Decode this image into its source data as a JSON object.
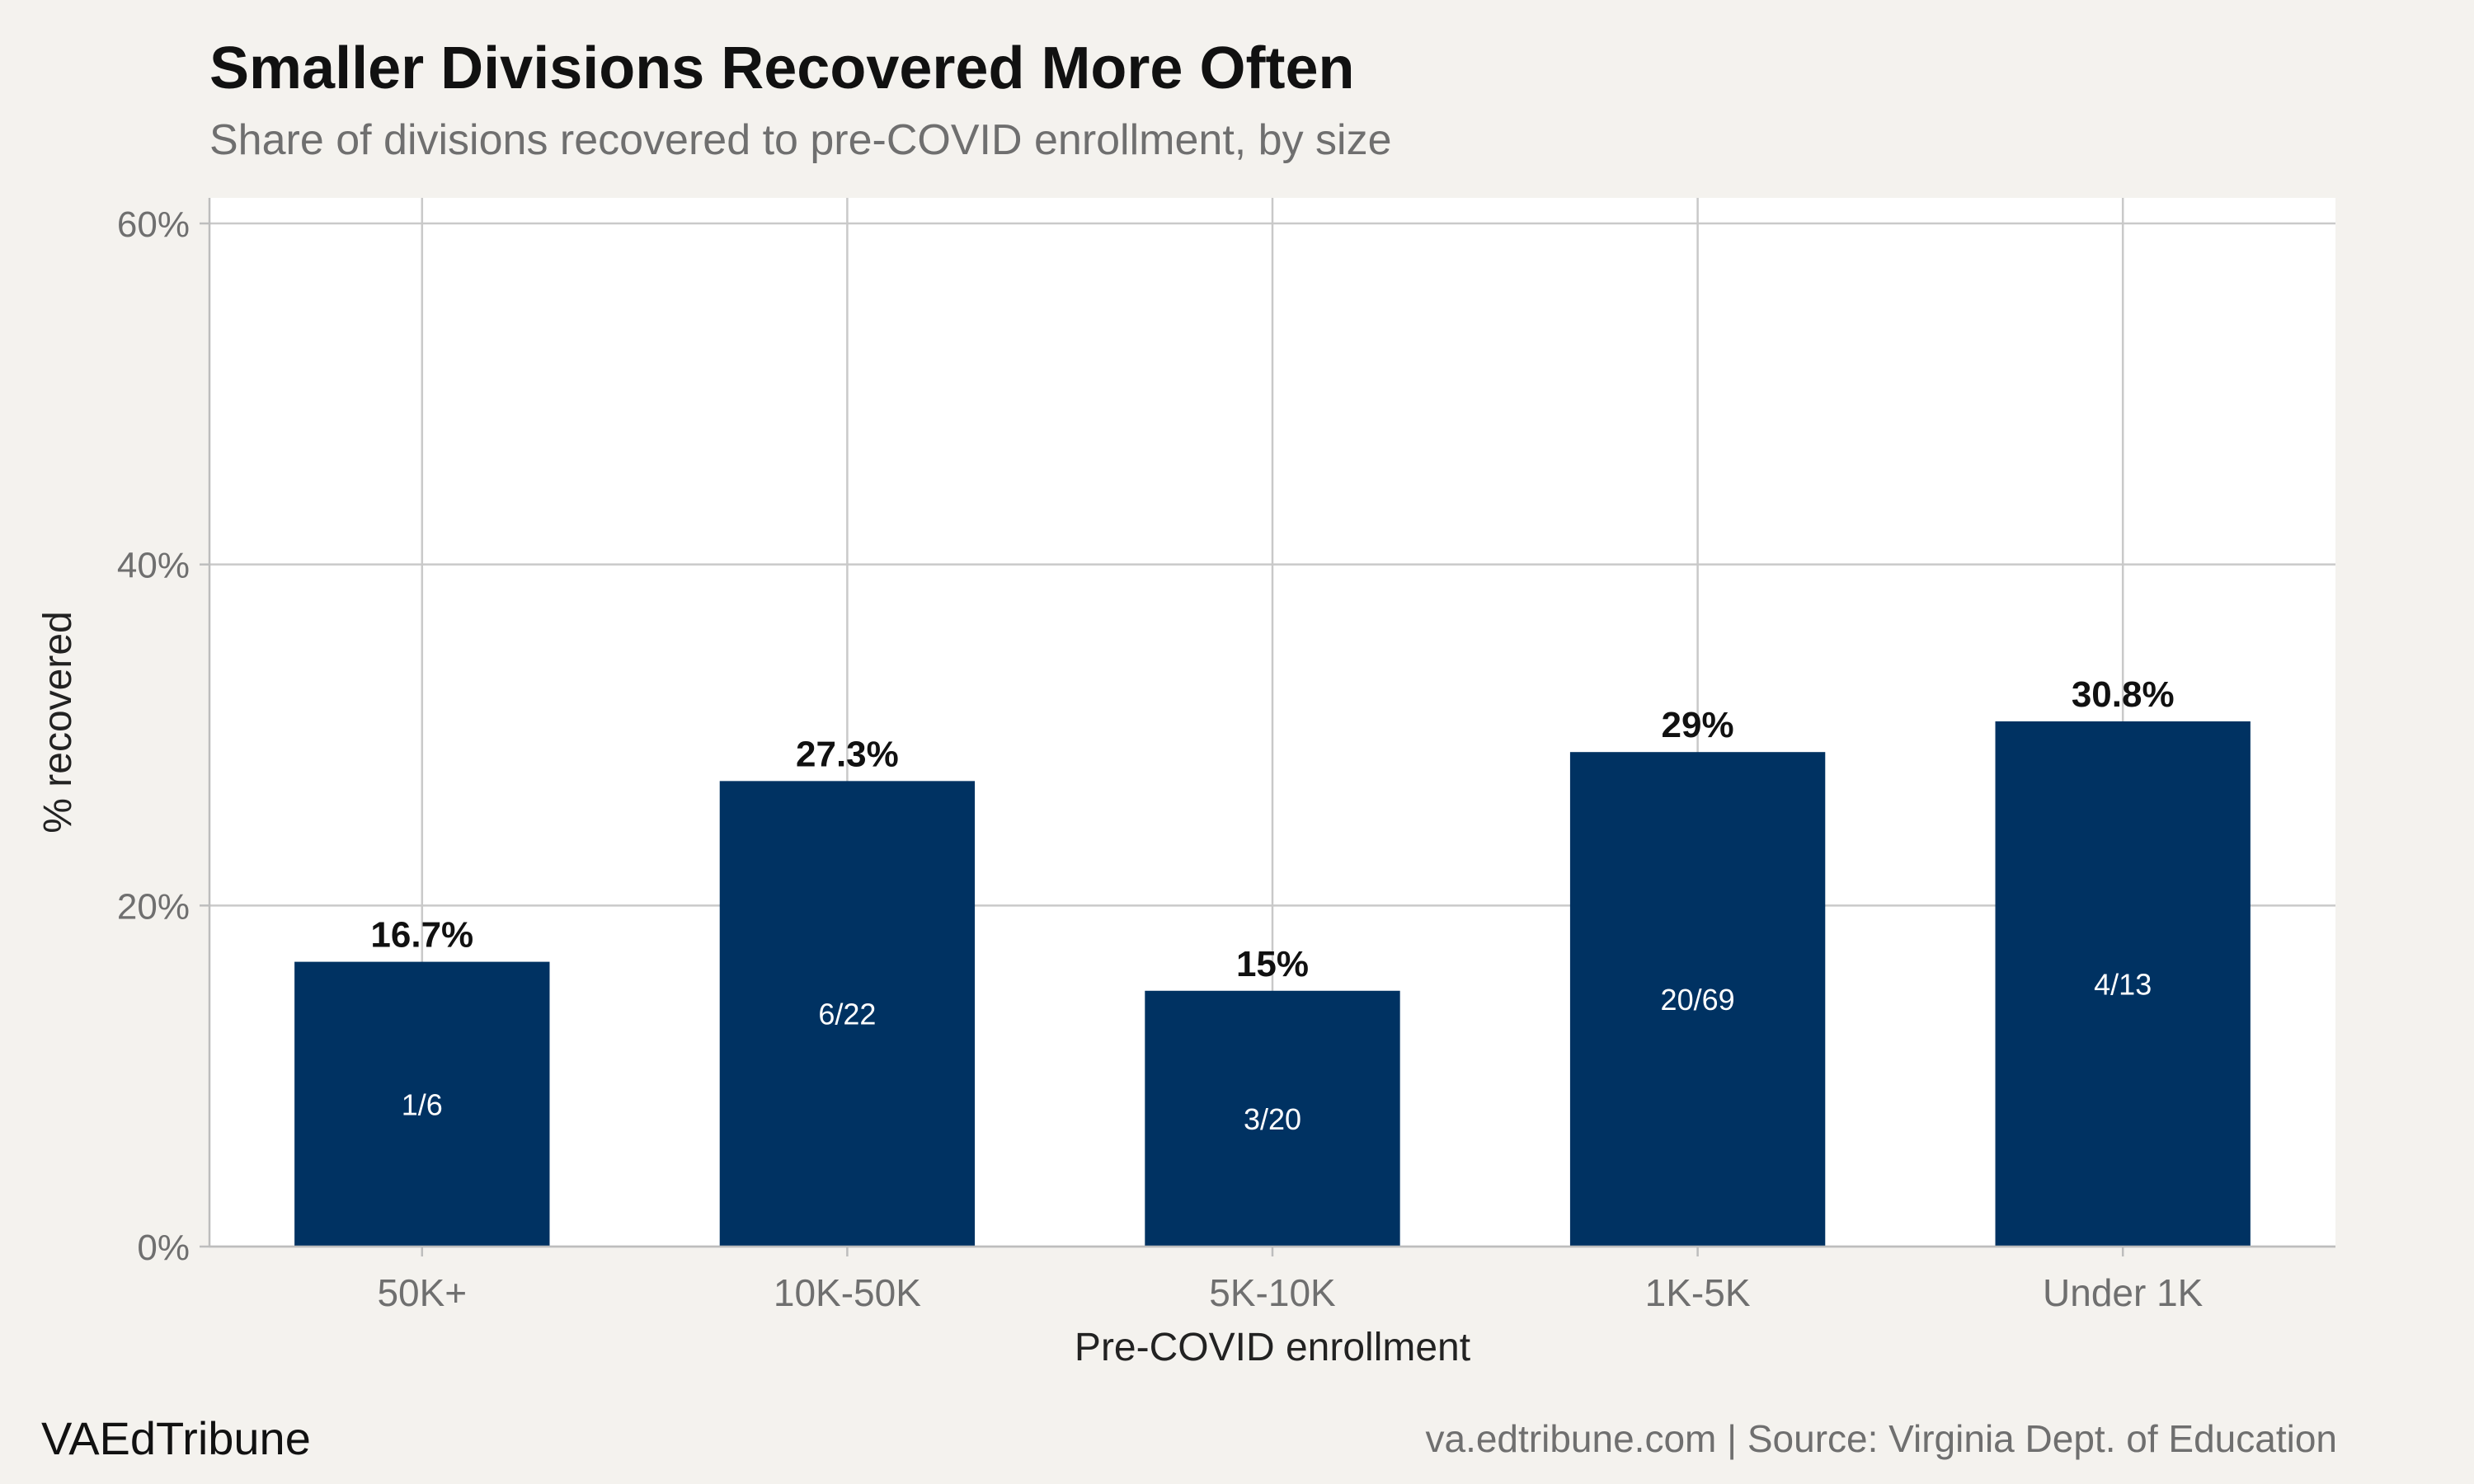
{
  "chart_data": {
    "type": "bar",
    "title": "Smaller Divisions Recovered More Often",
    "subtitle": "Share of divisions recovered to pre-COVID enrollment, by size",
    "xlabel": "Pre-COVID enrollment",
    "ylabel": "% recovered",
    "categories": [
      "50K+",
      "10K-50K",
      "5K-10K",
      "1K-5K",
      "Under 1K"
    ],
    "values": [
      16.7,
      27.3,
      15,
      29,
      30.8
    ],
    "value_labels": [
      "16.7%",
      "27.3%",
      "15%",
      "29%",
      "30.8%"
    ],
    "count_labels": [
      "1/6",
      "6/22",
      "3/20",
      "20/69",
      "4/13"
    ],
    "ylim": [
      0,
      61.5
    ],
    "yticks": [
      0,
      20,
      40,
      60
    ],
    "ytick_labels": [
      "0%",
      "20%",
      "40%",
      "60%"
    ],
    "grid": true,
    "bar_color": "#003262",
    "panel_color": "#ffffff",
    "background_color": "#f4f2ee"
  },
  "footer": {
    "brand": "VAEdTribune",
    "source": "va.edtribune.com | Source: Virginia Dept. of Education"
  }
}
